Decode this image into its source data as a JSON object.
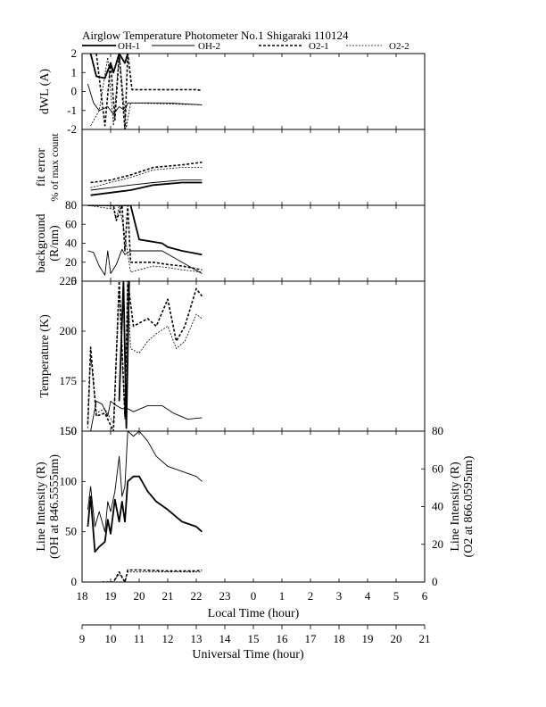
{
  "chart_data": {
    "type": "line",
    "title": "Airglow Temperature Photometer No.1  Shigaraki   110124",
    "legend": [
      "OH-1",
      "OH-2",
      "O2-1",
      "O2-2"
    ],
    "panels": [
      {
        "ylabel": "dWL (A)",
        "ylim": [
          -2,
          2
        ],
        "yticks": [
          "2",
          "1",
          "0",
          "-1",
          "-2"
        ],
        "series": [
          {
            "style": "OH-1",
            "x": [
              18.3,
              18.5,
              18.8,
              19.0,
              19.1,
              19.3,
              19.5,
              19.6
            ],
            "y": [
              2.0,
              0.8,
              0.7,
              1.5,
              1.0,
              2.0,
              1.5,
              2.0
            ]
          },
          {
            "style": "OH-2",
            "x": [
              18.2,
              18.4,
              18.6,
              18.9,
              19.1,
              19.3,
              19.5,
              19.6,
              19.7,
              21.0,
              22.2
            ],
            "y": [
              0.4,
              -0.6,
              -1.0,
              -0.8,
              -1.2,
              -0.8,
              -1.0,
              -0.6,
              -0.6,
              -0.6,
              -0.7
            ]
          },
          {
            "style": "O2-1",
            "x": [
              18.5,
              18.8,
              19.0,
              19.15,
              19.3,
              19.5,
              19.6,
              19.75,
              21.0,
              22.0,
              22.2
            ],
            "y": [
              2.0,
              -1.8,
              1.5,
              -1.5,
              2.0,
              -2.0,
              2.0,
              0.1,
              0.1,
              0.1,
              0.05
            ]
          },
          {
            "style": "O2-2",
            "x": [
              18.3,
              18.6,
              18.9,
              19.1,
              19.3,
              19.55,
              19.7,
              22.2
            ],
            "y": [
              -1.8,
              -1.0,
              1.8,
              -1.8,
              2.0,
              -1.9,
              -0.6,
              -0.7
            ]
          }
        ]
      },
      {
        "ylabel": "fit error",
        "ylabel2": "% of max count",
        "ylim": [
          0,
          3
        ],
        "yticks": [],
        "series": [
          {
            "style": "OH-1",
            "x": [
              18.3,
              19.0,
              19.7,
              20.5,
              21.5,
              22.2
            ],
            "y": [
              0.4,
              0.5,
              0.6,
              0.8,
              0.9,
              0.9
            ]
          },
          {
            "style": "OH-2",
            "x": [
              18.3,
              19.0,
              19.7,
              20.5,
              21.5,
              22.2
            ],
            "y": [
              0.6,
              0.7,
              0.8,
              0.9,
              1.0,
              1.0
            ]
          },
          {
            "style": "O2-1",
            "x": [
              18.3,
              19.0,
              19.7,
              20.5,
              21.5,
              22.2
            ],
            "y": [
              0.9,
              1.0,
              1.2,
              1.5,
              1.6,
              1.7
            ]
          },
          {
            "style": "O2-2",
            "x": [
              18.3,
              19.0,
              19.7,
              20.5,
              21.5,
              22.2
            ],
            "y": [
              0.7,
              0.9,
              1.1,
              1.4,
              1.5,
              1.5
            ]
          }
        ]
      },
      {
        "ylabel": "background",
        "ylabel2": "(R/nm)",
        "ylim": [
          0,
          100
        ],
        "yticks": [
          "80",
          "60",
          "40",
          "20",
          "0"
        ],
        "series": [
          {
            "style": "OH-1",
            "x": [
              18.2,
              19.0,
              19.2,
              19.5,
              19.7,
              20.0,
              20.8,
              21.0,
              21.5,
              22.2
            ],
            "y": [
              100,
              100,
              100,
              100,
              100,
              55,
              50,
              45,
              40,
              35
            ]
          },
          {
            "style": "OH-2",
            "x": [
              18.2,
              18.4,
              18.6,
              18.8,
              18.9,
              19.0,
              19.2,
              19.4,
              19.5,
              19.7,
              20.8,
              22.2
            ],
            "y": [
              40,
              38,
              20,
              8,
              40,
              10,
              22,
              42,
              35,
              40,
              40,
              10
            ]
          },
          {
            "style": "O2-1",
            "x": [
              18.2,
              19.1,
              19.2,
              19.4,
              19.5,
              19.6,
              19.7,
              20.5,
              21.0,
              21.5,
              22.2
            ],
            "y": [
              100,
              100,
              80,
              100,
              40,
              100,
              25,
              25,
              22,
              20,
              15
            ]
          },
          {
            "style": "O2-2",
            "x": [
              18.2,
              19.1,
              19.2,
              19.3,
              19.5,
              19.7,
              20.5,
              21.0,
              21.5,
              22.2
            ],
            "y": [
              100,
              95,
              80,
              100,
              60,
              12,
              20,
              18,
              15,
              12
            ]
          }
        ]
      },
      {
        "ylabel": "Temperature (K)",
        "ylim": [
          150,
          250
        ],
        "yticks": [
          "225",
          "200",
          "175",
          "150"
        ],
        "series": [
          {
            "style": "OH-1",
            "x": [
              19.3,
              19.45,
              19.55,
              19.65
            ],
            "y": [
              170,
              250,
              152,
              250
            ]
          },
          {
            "style": "OH-2",
            "x": [
              18.3,
              18.5,
              18.7,
              18.9,
              19.0,
              19.2,
              19.4,
              19.6,
              19.8,
              20.3,
              20.8,
              21.2,
              21.7,
              22.2
            ],
            "y": [
              150,
              170,
              168,
              160,
              170,
              167,
              165,
              165,
              163,
              167,
              167,
              162,
              158,
              159
            ]
          },
          {
            "style": "O2-1",
            "x": [
              18.2,
              18.3,
              18.5,
              18.8,
              19.1,
              19.3,
              19.5,
              19.6,
              19.8,
              20.0,
              20.3,
              20.6,
              21.0,
              21.3,
              21.6,
              22.0,
              22.2
            ],
            "y": [
              155,
              206,
              160,
              162,
              150,
              250,
              160,
              250,
              220,
              222,
              225,
              220,
              238,
              210,
              220,
              245,
              240
            ]
          },
          {
            "style": "O2-2",
            "x": [
              18.2,
              18.3,
              18.5,
              18.8,
              19.1,
              19.3,
              19.5,
              19.6,
              19.7,
              20.0,
              20.3,
              20.6,
              21.0,
              21.3,
              21.6,
              22.0,
              22.2
            ],
            "y": [
              152,
              200,
              162,
              165,
              155,
              245,
              158,
              250,
              205,
              202,
              210,
              215,
              220,
              205,
              210,
              228,
              225
            ]
          }
        ]
      },
      {
        "ylabel": "Line Intensity (R)",
        "ylabel2": "(OH at 846.5555nm)",
        "ylim": [
          0,
          150
        ],
        "yticks": [
          "150",
          "100",
          "50",
          "0"
        ],
        "ylabel_right": "Line Intensity (R)",
        "ylabel_right2": "(O2 at 866.0595nm)",
        "ylim_right": [
          0,
          80
        ],
        "yticks_right": [
          "80",
          "60",
          "40",
          "20",
          "0"
        ],
        "series": [
          {
            "style": "OH-1",
            "x": [
              18.2,
              18.3,
              18.45,
              18.6,
              18.8,
              18.9,
              19.0,
              19.15,
              19.3,
              19.4,
              19.5,
              19.6,
              19.8,
              20.0,
              20.3,
              20.6,
              21.0,
              21.5,
              22.0,
              22.2
            ],
            "y": [
              55,
              85,
              30,
              35,
              40,
              62,
              48,
              82,
              60,
              80,
              60,
              100,
              105,
              105,
              90,
              80,
              72,
              60,
              55,
              50
            ]
          },
          {
            "style": "OH-2",
            "x": [
              18.2,
              18.3,
              18.45,
              18.6,
              18.8,
              18.9,
              19.0,
              19.15,
              19.3,
              19.4,
              19.5,
              19.6,
              19.8,
              20.0,
              20.3,
              20.6,
              21.0,
              21.5,
              22.0,
              22.2
            ],
            "y": [
              72,
              95,
              55,
              70,
              50,
              80,
              70,
              90,
              125,
              85,
              95,
              150,
              145,
              150,
              140,
              125,
              115,
              110,
              105,
              100
            ]
          },
          {
            "style": "O2-1",
            "x": [
              18.7,
              18.9,
              19.1,
              19.2,
              19.3,
              19.5,
              19.6,
              20.0,
              21.0,
              22.0,
              22.2
            ],
            "y": [
              0,
              0,
              0,
              5,
              10,
              0,
              12,
              12,
              11,
              11,
              12
            ]
          },
          {
            "style": "O2-2",
            "x": [
              18.7,
              18.9,
              19.1,
              19.2,
              19.3,
              19.5,
              19.6,
              20.0,
              21.0,
              22.0,
              22.2
            ],
            "y": [
              0,
              0,
              0,
              4,
              8,
              0,
              10,
              10,
              10,
              10,
              10
            ]
          }
        ]
      }
    ],
    "xlabel": "Local Time (hour)",
    "xticks": [
      "18",
      "19",
      "20",
      "21",
      "22",
      "23",
      "0",
      "1",
      "2",
      "3",
      "4",
      "5",
      "6"
    ],
    "xlim": [
      18,
      30
    ],
    "xlabel2": "Universal Time (hour)",
    "xticks2": [
      "9",
      "10",
      "11",
      "12",
      "13",
      "14",
      "15",
      "16",
      "17",
      "18",
      "19",
      "20",
      "21"
    ]
  }
}
